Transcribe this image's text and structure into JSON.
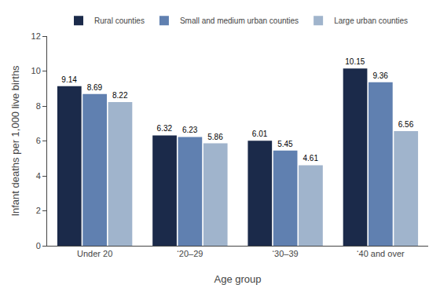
{
  "chart_data": {
    "type": "bar",
    "categories": [
      "Under 20",
      "‘20–29",
      "‘30–39",
      "‘40 and over"
    ],
    "series": [
      {
        "name": "Rural counties",
        "color": "#1b2a4a",
        "values": [
          9.14,
          6.32,
          6.01,
          10.15
        ]
      },
      {
        "name": "Small and medium urban counties",
        "color": "#6080b0",
        "values": [
          8.69,
          6.23,
          5.45,
          9.36
        ]
      },
      {
        "name": "Large urban counties",
        "color": "#a0b4cc",
        "values": [
          8.22,
          5.86,
          4.61,
          6.56
        ]
      }
    ],
    "xlabel": "Age group",
    "ylabel": "Infant deaths per 1,000 live births",
    "ylim": [
      0,
      12
    ],
    "yticks": [
      0,
      2,
      4,
      6,
      8,
      10,
      12
    ],
    "grid": false,
    "legend": "top",
    "data_labels": true
  }
}
